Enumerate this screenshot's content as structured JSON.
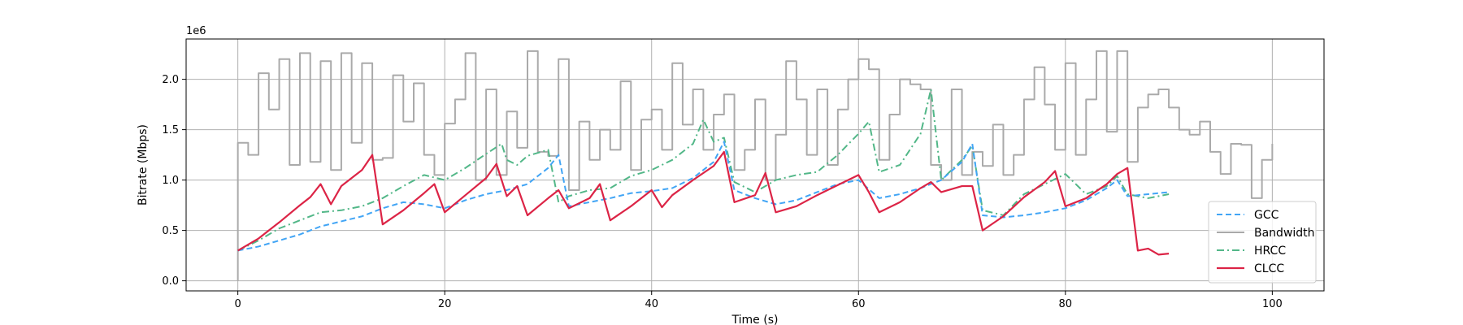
{
  "chart_data": {
    "type": "line",
    "title": "",
    "xlabel": "Time (s)",
    "ylabel": "Bitrate (Mbps)",
    "y_offset_label": "1e6",
    "xlim": [
      -5,
      105
    ],
    "ylim": [
      -100000,
      2400000
    ],
    "xticks": [
      0,
      20,
      40,
      60,
      80,
      100
    ],
    "xtick_labels": [
      "0",
      "20",
      "40",
      "60",
      "80",
      "100"
    ],
    "yticks": [
      0,
      500000,
      1000000,
      1500000,
      2000000
    ],
    "ytick_labels": [
      "0.0",
      "0.5",
      "1.0",
      "1.5",
      "2.0"
    ],
    "grid": true,
    "legend_position": "lower-right",
    "series": [
      {
        "name": "GCC",
        "color": "#42a5f5",
        "style": "dashed",
        "x": [
          0,
          2,
          4,
          6,
          8,
          10,
          12,
          14,
          16,
          18,
          20,
          22,
          24,
          26,
          28,
          30,
          31,
          32,
          34,
          36,
          38,
          40,
          42,
          44,
          46,
          47,
          48,
          50,
          52,
          54,
          56,
          58,
          60,
          62,
          64,
          66,
          68,
          70,
          71,
          72,
          74,
          76,
          78,
          80,
          82,
          84,
          85,
          86,
          88,
          90
        ],
        "y": [
          300000,
          340000,
          400000,
          460000,
          540000,
          590000,
          640000,
          720000,
          780000,
          760000,
          720000,
          800000,
          860000,
          900000,
          960000,
          1120000,
          1250000,
          740000,
          780000,
          820000,
          870000,
          890000,
          920000,
          1020000,
          1180000,
          1380000,
          900000,
          820000,
          760000,
          800000,
          880000,
          960000,
          1000000,
          820000,
          860000,
          920000,
          1000000,
          1180000,
          1360000,
          650000,
          630000,
          650000,
          680000,
          720000,
          800000,
          920000,
          1000000,
          840000,
          860000,
          880000
        ]
      },
      {
        "name": "Bandwidth",
        "color": "#aaaaaa",
        "style": "step",
        "x": [
          0,
          1,
          2,
          3,
          4,
          5,
          6,
          7,
          8,
          9,
          10,
          11,
          12,
          13,
          14,
          15,
          16,
          17,
          18,
          19,
          20,
          21,
          22,
          23,
          24,
          25,
          26,
          27,
          28,
          29,
          30,
          31,
          32,
          33,
          34,
          35,
          36,
          37,
          38,
          39,
          40,
          41,
          42,
          43,
          44,
          45,
          46,
          47,
          48,
          49,
          50,
          51,
          52,
          53,
          54,
          55,
          56,
          57,
          58,
          59,
          60,
          61,
          62,
          63,
          64,
          65,
          66,
          67,
          68,
          69,
          70,
          71,
          72,
          73,
          74,
          75,
          76,
          77,
          78,
          79,
          80,
          81,
          82,
          83,
          84,
          85,
          86,
          87,
          88,
          89,
          90,
          91,
          92,
          93,
          94,
          95,
          96,
          97,
          98,
          99,
          100
        ],
        "y": [
          1370000,
          1250000,
          2060000,
          1700000,
          2200000,
          1150000,
          2260000,
          1180000,
          2180000,
          1100000,
          2260000,
          1370000,
          2160000,
          1200000,
          1220000,
          2040000,
          1580000,
          1960000,
          1250000,
          1050000,
          1560000,
          1800000,
          2260000,
          1000000,
          1900000,
          1050000,
          1680000,
          1320000,
          2280000,
          1280000,
          1240000,
          2200000,
          900000,
          1580000,
          1200000,
          1500000,
          1300000,
          1980000,
          1100000,
          1600000,
          1700000,
          1300000,
          2160000,
          1550000,
          1900000,
          1300000,
          1650000,
          1850000,
          1100000,
          1300000,
          1800000,
          1000000,
          1450000,
          2180000,
          1800000,
          1250000,
          1900000,
          1150000,
          1700000,
          2000000,
          2200000,
          2100000,
          1200000,
          1650000,
          2000000,
          1950000,
          1900000,
          1150000,
          1000000,
          1900000,
          1050000,
          1280000,
          1140000,
          1550000,
          1050000,
          1250000,
          1800000,
          2120000,
          1750000,
          1300000,
          2160000,
          1250000,
          1800000,
          2280000,
          1480000,
          2280000,
          1180000,
          1720000,
          1850000,
          1900000,
          1720000,
          1500000,
          1450000,
          1580000,
          1280000,
          1060000,
          1360000,
          1350000,
          820000,
          1200000,
          1360000
        ]
      },
      {
        "name": "HRCC",
        "color": "#52b788",
        "style": "dashdot",
        "x": [
          0,
          2,
          4,
          6,
          8,
          10,
          12,
          14,
          16,
          18,
          20,
          22,
          24,
          25.5,
          26,
          27,
          28,
          30,
          31,
          32,
          34,
          36,
          38,
          40,
          42,
          44,
          45,
          46,
          47,
          48,
          50,
          52,
          54,
          56,
          58,
          60,
          61,
          62,
          64,
          66,
          67,
          68,
          70,
          71,
          72,
          74,
          76,
          78,
          80,
          82,
          84,
          85,
          86,
          88,
          90
        ],
        "y": [
          300000,
          400000,
          520000,
          600000,
          680000,
          700000,
          740000,
          820000,
          940000,
          1050000,
          1000000,
          1120000,
          1260000,
          1360000,
          1200000,
          1150000,
          1240000,
          1300000,
          780000,
          840000,
          900000,
          920000,
          1040000,
          1100000,
          1200000,
          1360000,
          1600000,
          1380000,
          1420000,
          980000,
          880000,
          1000000,
          1050000,
          1080000,
          1250000,
          1460000,
          1580000,
          1080000,
          1150000,
          1460000,
          1900000,
          1000000,
          1200000,
          1340000,
          700000,
          650000,
          860000,
          960000,
          1060000,
          860000,
          940000,
          1040000,
          860000,
          820000,
          860000
        ]
      },
      {
        "name": "CLCC",
        "color": "#dc2446",
        "style": "solid",
        "x": [
          0,
          2,
          4,
          6,
          7,
          8,
          9,
          10,
          12,
          13,
          14,
          16,
          18,
          19,
          20,
          22,
          24,
          25,
          26,
          27,
          28,
          30,
          31,
          32,
          34,
          35,
          36,
          38,
          40,
          41,
          42,
          44,
          46,
          47,
          48,
          50,
          51,
          52,
          54,
          56,
          58,
          60,
          61,
          62,
          64,
          66,
          67,
          68,
          70,
          71,
          72,
          74,
          76,
          78,
          79,
          80,
          82,
          84,
          85,
          86,
          87,
          88,
          89,
          90
        ],
        "y": [
          300000,
          420000,
          580000,
          750000,
          830000,
          960000,
          760000,
          940000,
          1100000,
          1250000,
          560000,
          700000,
          870000,
          960000,
          680000,
          850000,
          1020000,
          1160000,
          840000,
          940000,
          650000,
          820000,
          900000,
          720000,
          820000,
          960000,
          600000,
          740000,
          900000,
          730000,
          850000,
          1000000,
          1140000,
          1280000,
          780000,
          850000,
          1070000,
          680000,
          740000,
          850000,
          950000,
          1050000,
          880000,
          680000,
          780000,
          920000,
          980000,
          880000,
          940000,
          940000,
          500000,
          640000,
          830000,
          980000,
          1090000,
          740000,
          820000,
          960000,
          1060000,
          1120000,
          300000,
          320000,
          260000,
          270000
        ]
      }
    ]
  }
}
